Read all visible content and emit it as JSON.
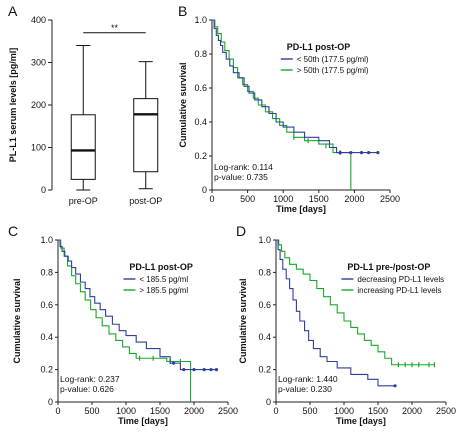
{
  "panels": [
    {
      "letter": "A",
      "type": "box",
      "ylabel": "PL-L1 serum levels [pg/ml]",
      "yticks": [
        "0",
        "100",
        "200",
        "300",
        "400"
      ],
      "ylim": [
        0,
        400
      ],
      "categories": [
        "pre-OP",
        "post-OP"
      ],
      "boxes": [
        {
          "min": 0,
          "q1": 25,
          "median": 93,
          "q3": 177,
          "max": 340
        },
        {
          "min": 3,
          "q1": 43,
          "median": 178,
          "q3": 215,
          "max": 302
        }
      ],
      "significance": "**"
    },
    {
      "letter": "B",
      "type": "km",
      "ylabel": "Cumulative survival",
      "xlabel": "Time [days]",
      "yticks": [
        "0",
        "0.2",
        "0.4",
        "0.6",
        "0.8",
        "1.0"
      ],
      "xticks": [
        "0",
        "500",
        "1000",
        "1500",
        "2000",
        "2500"
      ],
      "xlim": [
        0,
        2500
      ],
      "ylim": [
        0,
        1
      ],
      "legend_title": "PD-L1 post-OP",
      "legend": [
        "< 50th (177.5 pg/ml)",
        "> 50th (177.5 pg/ml)"
      ],
      "stat_lines": [
        "Log-rank: 0.114",
        "p-value: 0.735"
      ],
      "series": [
        {
          "color": "#2e3f9e",
          "steps": [
            [
              0,
              1
            ],
            [
              30,
              0.95
            ],
            [
              60,
              0.91
            ],
            [
              90,
              0.88
            ],
            [
              120,
              0.85
            ],
            [
              150,
              0.81
            ],
            [
              200,
              0.77
            ],
            [
              250,
              0.73
            ],
            [
              300,
              0.69
            ],
            [
              380,
              0.66
            ],
            [
              450,
              0.61
            ],
            [
              520,
              0.57
            ],
            [
              600,
              0.53
            ],
            [
              700,
              0.49
            ],
            [
              800,
              0.45
            ],
            [
              900,
              0.4
            ],
            [
              1000,
              0.37
            ],
            [
              1150,
              0.34
            ],
            [
              1300,
              0.31
            ],
            [
              1500,
              0.29
            ],
            [
              1650,
              0.25
            ],
            [
              1750,
              0.22
            ],
            [
              2330,
              0.22
            ]
          ],
          "censor": [
            [
              1800,
              0.22
            ],
            [
              1950,
              0.22
            ],
            [
              2100,
              0.22
            ],
            [
              2200,
              0.22
            ],
            [
              2330,
              0.22
            ]
          ]
        },
        {
          "color": "#1aa82a",
          "steps": [
            [
              0,
              1
            ],
            [
              40,
              0.96
            ],
            [
              80,
              0.92
            ],
            [
              130,
              0.87
            ],
            [
              180,
              0.82
            ],
            [
              240,
              0.77
            ],
            [
              300,
              0.72
            ],
            [
              360,
              0.66
            ],
            [
              430,
              0.62
            ],
            [
              500,
              0.58
            ],
            [
              580,
              0.54
            ],
            [
              650,
              0.5
            ],
            [
              750,
              0.46
            ],
            [
              850,
              0.42
            ],
            [
              950,
              0.38
            ],
            [
              1050,
              0.34
            ],
            [
              1150,
              0.31
            ],
            [
              1300,
              0.29
            ],
            [
              1500,
              0.27
            ],
            [
              1700,
              0.22
            ],
            [
              1950,
              0.22
            ],
            [
              1950,
              0.0
            ]
          ],
          "censor": [
            [
              1150,
              0.31
            ],
            [
              1350,
              0.29
            ],
            [
              1600,
              0.26
            ],
            [
              1800,
              0.22
            ]
          ]
        }
      ]
    },
    {
      "letter": "C",
      "type": "km",
      "ylabel": "Cumulative survival",
      "xlabel": "Time [days]",
      "yticks": [
        "0",
        "0.2",
        "0.4",
        "0.6",
        "0.8",
        "1.0"
      ],
      "xticks": [
        "0",
        "500",
        "1000",
        "1500",
        "2000",
        "2500"
      ],
      "xlim": [
        0,
        2500
      ],
      "ylim": [
        0,
        1
      ],
      "legend_title": "PD-L1 post-OP",
      "legend": [
        "< 185.5 pg/ml",
        "> 185.5 pg/ml"
      ],
      "stat_lines": [
        "Log-rank: 0.237",
        "p-value: 0.626"
      ],
      "series": [
        {
          "color": "#2e3f9e",
          "steps": [
            [
              0,
              1
            ],
            [
              30,
              0.96
            ],
            [
              60,
              0.93
            ],
            [
              100,
              0.9
            ],
            [
              150,
              0.87
            ],
            [
              200,
              0.83
            ],
            [
              260,
              0.79
            ],
            [
              330,
              0.74
            ],
            [
              400,
              0.7
            ],
            [
              470,
              0.65
            ],
            [
              540,
              0.61
            ],
            [
              620,
              0.57
            ],
            [
              700,
              0.53
            ],
            [
              800,
              0.48
            ],
            [
              900,
              0.44
            ],
            [
              1000,
              0.41
            ],
            [
              1150,
              0.37
            ],
            [
              1300,
              0.33
            ],
            [
              1500,
              0.28
            ],
            [
              1650,
              0.24
            ],
            [
              1800,
              0.2
            ],
            [
              2330,
              0.2
            ]
          ],
          "censor": [
            [
              1700,
              0.24
            ],
            [
              1850,
              0.2
            ],
            [
              2000,
              0.2
            ],
            [
              2150,
              0.2
            ],
            [
              2250,
              0.2
            ],
            [
              2330,
              0.2
            ]
          ]
        },
        {
          "color": "#1aa82a",
          "steps": [
            [
              0,
              1
            ],
            [
              40,
              0.95
            ],
            [
              90,
              0.9
            ],
            [
              140,
              0.84
            ],
            [
              200,
              0.78
            ],
            [
              260,
              0.73
            ],
            [
              330,
              0.68
            ],
            [
              400,
              0.63
            ],
            [
              480,
              0.57
            ],
            [
              560,
              0.52
            ],
            [
              650,
              0.47
            ],
            [
              750,
              0.42
            ],
            [
              850,
              0.38
            ],
            [
              950,
              0.34
            ],
            [
              1050,
              0.3
            ],
            [
              1150,
              0.27
            ],
            [
              1500,
              0.27
            ],
            [
              1600,
              0.25
            ],
            [
              1950,
              0.25
            ],
            [
              1950,
              0.0
            ]
          ],
          "censor": [
            [
              1200,
              0.27
            ],
            [
              1400,
              0.27
            ],
            [
              1650,
              0.25
            ],
            [
              1800,
              0.25
            ]
          ]
        }
      ]
    },
    {
      "letter": "D",
      "type": "km",
      "ylabel": "Cumulative survival",
      "xlabel": "Time [days]",
      "yticks": [
        "0",
        "0.2",
        "0.4",
        "0.6",
        "0.8",
        "1.0"
      ],
      "xticks": [
        "0",
        "500",
        "1000",
        "1500",
        "2000",
        "2500"
      ],
      "xlim": [
        0,
        2500
      ],
      "ylim": [
        0,
        1
      ],
      "legend_title": "PD-L1 pre-/post-OP",
      "legend": [
        "decreasing PD-L1 levels",
        "increasing PD-L1 levels"
      ],
      "stat_lines": [
        "Log-rank: 1.440",
        "p-value: 0.230"
      ],
      "series": [
        {
          "color": "#2e3f9e",
          "steps": [
            [
              0,
              1
            ],
            [
              30,
              0.94
            ],
            [
              60,
              0.88
            ],
            [
              100,
              0.82
            ],
            [
              150,
              0.76
            ],
            [
              200,
              0.7
            ],
            [
              250,
              0.63
            ],
            [
              300,
              0.56
            ],
            [
              350,
              0.5
            ],
            [
              420,
              0.44
            ],
            [
              480,
              0.38
            ],
            [
              550,
              0.33
            ],
            [
              650,
              0.28
            ],
            [
              750,
              0.25
            ],
            [
              900,
              0.21
            ],
            [
              1100,
              0.17
            ],
            [
              1350,
              0.14
            ],
            [
              1500,
              0.1
            ],
            [
              1750,
              0.1
            ]
          ],
          "censor": [
            [
              1750,
              0.1
            ]
          ]
        },
        {
          "color": "#1aa82a",
          "steps": [
            [
              0,
              1
            ],
            [
              40,
              0.97
            ],
            [
              80,
              0.93
            ],
            [
              130,
              0.89
            ],
            [
              200,
              0.85
            ],
            [
              300,
              0.82
            ],
            [
              400,
              0.79
            ],
            [
              500,
              0.75
            ],
            [
              600,
              0.7
            ],
            [
              700,
              0.65
            ],
            [
              800,
              0.6
            ],
            [
              900,
              0.55
            ],
            [
              1000,
              0.5
            ],
            [
              1100,
              0.46
            ],
            [
              1200,
              0.42
            ],
            [
              1300,
              0.38
            ],
            [
              1400,
              0.35
            ],
            [
              1500,
              0.31
            ],
            [
              1600,
              0.27
            ],
            [
              1700,
              0.23
            ],
            [
              2330,
              0.23
            ]
          ],
          "censor": [
            [
              1800,
              0.23
            ],
            [
              1900,
              0.23
            ],
            [
              2000,
              0.23
            ],
            [
              2100,
              0.23
            ],
            [
              2250,
              0.23
            ],
            [
              2330,
              0.23
            ]
          ]
        }
      ]
    }
  ]
}
